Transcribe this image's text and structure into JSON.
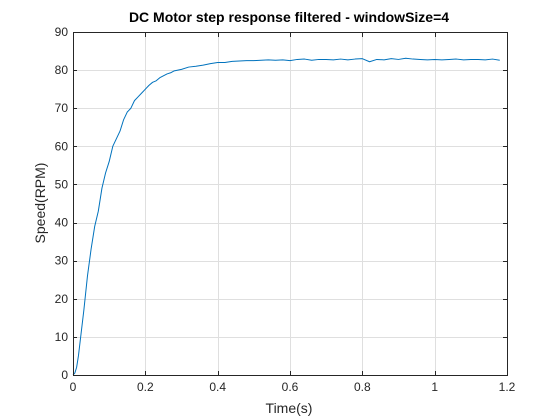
{
  "chart_data": {
    "type": "line",
    "title": "DC Motor step response filtered - windowSize=4",
    "xlabel": "Time(s)",
    "ylabel": "Speed(RPM)",
    "xlim": [
      0,
      1.2
    ],
    "ylim": [
      0,
      90
    ],
    "xticks": [
      0,
      0.2,
      0.4,
      0.6,
      0.8,
      1,
      1.2
    ],
    "xtick_labels": [
      "0",
      "0.2",
      "0.4",
      "0.6",
      "0.8",
      "1",
      "1.2"
    ],
    "yticks": [
      0,
      10,
      20,
      30,
      40,
      50,
      60,
      70,
      80,
      90
    ],
    "ytick_labels": [
      "0",
      "10",
      "20",
      "30",
      "40",
      "50",
      "60",
      "70",
      "80",
      "90"
    ],
    "grid": true,
    "series": [
      {
        "color": "#0072bd",
        "x": [
          0,
          0.005,
          0.01,
          0.015,
          0.02,
          0.03,
          0.04,
          0.05,
          0.06,
          0.07,
          0.08,
          0.09,
          0.1,
          0.11,
          0.12,
          0.13,
          0.14,
          0.15,
          0.16,
          0.17,
          0.18,
          0.19,
          0.2,
          0.21,
          0.22,
          0.23,
          0.24,
          0.25,
          0.26,
          0.27,
          0.28,
          0.29,
          0.3,
          0.32,
          0.34,
          0.36,
          0.38,
          0.4,
          0.42,
          0.44,
          0.46,
          0.48,
          0.5,
          0.52,
          0.54,
          0.56,
          0.58,
          0.6,
          0.62,
          0.64,
          0.66,
          0.68,
          0.7,
          0.72,
          0.74,
          0.76,
          0.78,
          0.8,
          0.82,
          0.84,
          0.86,
          0.88,
          0.9,
          0.92,
          0.94,
          0.96,
          0.98,
          1.0,
          1.02,
          1.04,
          1.06,
          1.08,
          1.1,
          1.12,
          1.14,
          1.16,
          1.18
        ],
        "y": [
          0,
          0.5,
          2,
          5,
          9,
          17,
          26,
          33,
          39,
          43,
          49,
          53,
          56,
          60,
          62,
          64,
          67,
          69,
          70,
          72,
          73,
          74,
          75,
          76,
          76.8,
          77.2,
          78,
          78.5,
          79,
          79.3,
          79.8,
          80,
          80.2,
          80.8,
          81,
          81.3,
          81.7,
          82,
          82,
          82.3,
          82.4,
          82.5,
          82.5,
          82.6,
          82.7,
          82.6,
          82.7,
          82.5,
          82.8,
          82.9,
          82.6,
          82.8,
          82.8,
          82.7,
          82.9,
          82.7,
          82.9,
          83,
          82.2,
          82.8,
          82.7,
          83,
          82.8,
          83.1,
          82.9,
          82.8,
          82.7,
          82.8,
          82.7,
          82.8,
          82.9,
          82.7,
          82.8,
          82.8,
          82.7,
          82.9,
          82.6
        ]
      }
    ]
  }
}
